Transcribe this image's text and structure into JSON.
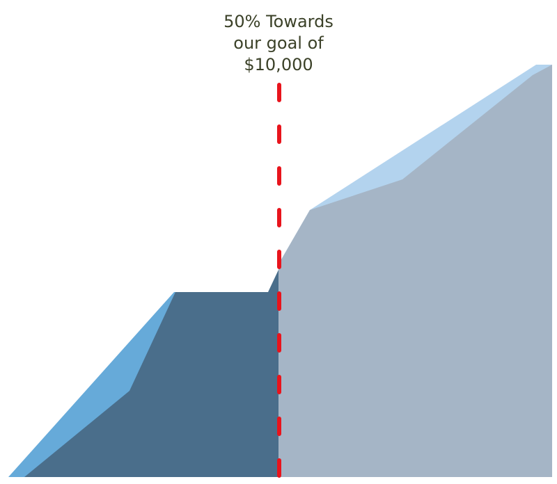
{
  "label": {
    "lines": [
      "50% Towards",
      "our goal of",
      "$10,000"
    ]
  }
}
